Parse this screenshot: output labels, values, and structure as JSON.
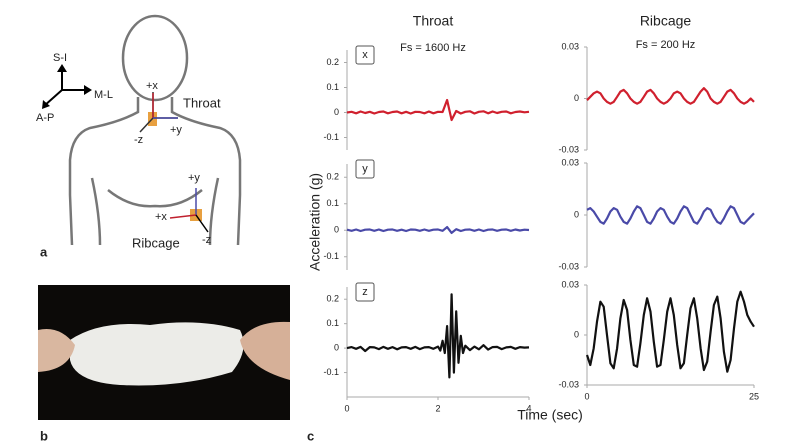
{
  "panels": [
    "a",
    "b",
    "c"
  ],
  "diagram": {
    "axes": [
      "S-I",
      "M-L",
      "A-P"
    ],
    "throat_sensor": {
      "name": "Throat",
      "arrows": [
        "+x",
        "+y",
        "-z"
      ]
    },
    "ribcage_sensor": {
      "name": "Ribcage",
      "arrows": [
        "+y",
        "+x",
        "-z"
      ]
    }
  },
  "y_label": "Acceleration (g)",
  "x_label": "Time (sec)",
  "chart_data": [
    {
      "type": "line",
      "title": "Throat",
      "subtitle": "Fs = 1600 Hz",
      "label": "x",
      "color": "#d0202e",
      "xlim": [
        0,
        4
      ],
      "ylim": [
        -0.15,
        0.25
      ],
      "yticks": [
        -0.1,
        0,
        0.1,
        0.2
      ],
      "x": [
        0,
        0.1,
        0.2,
        0.3,
        0.4,
        0.5,
        0.6,
        0.7,
        0.8,
        0.9,
        1,
        1.1,
        1.2,
        1.3,
        1.4,
        1.5,
        1.6,
        1.7,
        1.8,
        1.9,
        2,
        2.1,
        2.2,
        2.3,
        2.4,
        2.5,
        2.6,
        2.7,
        2.8,
        2.9,
        3,
        3.1,
        3.2,
        3.3,
        3.4,
        3.5,
        3.6,
        3.7,
        3.8,
        3.9,
        4
      ],
      "values": [
        0,
        0.003,
        -0.003,
        0.004,
        -0.002,
        0.003,
        -0.004,
        0.002,
        0.004,
        -0.003,
        0.002,
        0.004,
        -0.003,
        0.003,
        -0.004,
        0.003,
        0.002,
        -0.003,
        0.004,
        -0.003,
        0.003,
        0.002,
        0.05,
        -0.03,
        0.006,
        -0.004,
        0.003,
        0.005,
        -0.004,
        0.003,
        0.005,
        -0.003,
        0.004,
        -0.002,
        0.003,
        0.004,
        -0.003,
        0.002,
        0.004,
        0.001,
        0.003
      ]
    },
    {
      "type": "line",
      "label": "y",
      "color": "#4a4aa8",
      "xlim": [
        0,
        4
      ],
      "ylim": [
        -0.15,
        0.25
      ],
      "yticks": [
        -0.1,
        0,
        0.1,
        0.2
      ],
      "x": [
        0,
        0.1,
        0.2,
        0.3,
        0.4,
        0.5,
        0.6,
        0.7,
        0.8,
        0.9,
        1,
        1.1,
        1.2,
        1.3,
        1.4,
        1.5,
        1.6,
        1.7,
        1.8,
        1.9,
        2,
        2.1,
        2.2,
        2.3,
        2.4,
        2.5,
        2.6,
        2.7,
        2.8,
        2.9,
        3,
        3.1,
        3.2,
        3.3,
        3.4,
        3.5,
        3.6,
        3.7,
        3.8,
        3.9,
        4
      ],
      "values": [
        0.002,
        -0.002,
        0.003,
        -0.003,
        0.002,
        0.003,
        -0.002,
        0.003,
        -0.003,
        0.002,
        0.003,
        -0.002,
        0.002,
        -0.003,
        0.003,
        0.002,
        -0.002,
        0.003,
        -0.002,
        0.002,
        0.003,
        -0.002,
        0.012,
        -0.01,
        0.004,
        -0.003,
        0.002,
        0.003,
        -0.002,
        0.003,
        -0.003,
        0.002,
        0.003,
        -0.002,
        0.002,
        0.003,
        -0.002,
        0.003,
        -0.001,
        0.002,
        0.001
      ]
    },
    {
      "type": "line",
      "label": "z",
      "color": "#111111",
      "xlim": [
        0,
        4
      ],
      "ylim": [
        -0.2,
        0.25
      ],
      "yticks": [
        -0.1,
        0,
        0.1,
        0.2
      ],
      "xticks": [
        0,
        2,
        4
      ],
      "x": [
        0,
        0.1,
        0.2,
        0.3,
        0.4,
        0.5,
        0.6,
        0.7,
        0.8,
        0.9,
        1,
        1.1,
        1.2,
        1.3,
        1.4,
        1.5,
        1.6,
        1.7,
        1.8,
        1.9,
        2,
        2.05,
        2.1,
        2.15,
        2.2,
        2.25,
        2.3,
        2.35,
        2.4,
        2.45,
        2.5,
        2.55,
        2.6,
        2.7,
        2.8,
        2.9,
        3,
        3.1,
        3.2,
        3.3,
        3.4,
        3.5,
        3.6,
        3.7,
        3.8,
        3.9,
        4
      ],
      "values": [
        0,
        0.004,
        -0.003,
        0.005,
        -0.012,
        0.004,
        0.003,
        -0.004,
        0.005,
        -0.003,
        0.004,
        -0.005,
        0.003,
        0.004,
        -0.003,
        0.005,
        -0.004,
        0.003,
        0.004,
        -0.003,
        0.006,
        -0.01,
        0.03,
        -0.02,
        0.09,
        -0.12,
        0.22,
        -0.1,
        0.15,
        -0.06,
        0.05,
        -0.02,
        0.01,
        -0.008,
        0.006,
        -0.005,
        0.012,
        -0.006,
        0.004,
        0.005,
        -0.004,
        0.003,
        0.005,
        -0.003,
        0.004,
        0.002,
        0.003
      ]
    },
    {
      "type": "line",
      "title": "Ribcage",
      "subtitle": "Fs = 200 Hz",
      "color": "#d0202e",
      "xlim": [
        0,
        25
      ],
      "ylim": [
        -0.03,
        0.03
      ],
      "yticks": [
        -0.03,
        0,
        0.03
      ],
      "x": [
        0,
        0.5,
        1,
        1.5,
        2,
        2.5,
        3,
        3.5,
        4,
        4.5,
        5,
        5.5,
        6,
        6.5,
        7,
        7.5,
        8,
        8.5,
        9,
        9.5,
        10,
        10.5,
        11,
        11.5,
        12,
        12.5,
        13,
        13.5,
        14,
        14.5,
        15,
        15.5,
        16,
        16.5,
        17,
        17.5,
        18,
        18.5,
        19,
        19.5,
        20,
        20.5,
        21,
        21.5,
        22,
        22.5,
        23,
        23.5,
        24,
        24.5,
        25
      ],
      "values": [
        -0.001,
        0.001,
        0.003,
        0.004,
        0.003,
        0.0,
        -0.002,
        -0.003,
        -0.002,
        0.001,
        0.004,
        0.005,
        0.003,
        0.0,
        -0.002,
        -0.003,
        -0.002,
        0.001,
        0.004,
        0.005,
        0.003,
        0.0,
        -0.002,
        -0.003,
        -0.002,
        0.0,
        0.003,
        0.004,
        0.003,
        0.0,
        -0.002,
        -0.003,
        -0.002,
        0.001,
        0.004,
        0.006,
        0.004,
        0.0,
        -0.002,
        -0.003,
        -0.002,
        0.001,
        0.004,
        0.005,
        0.003,
        0.0,
        -0.002,
        -0.003,
        -0.002,
        0.0,
        -0.002
      ]
    },
    {
      "type": "line",
      "color": "#4a4aa8",
      "xlim": [
        0,
        25
      ],
      "ylim": [
        -0.03,
        0.03
      ],
      "yticks": [
        -0.03,
        0,
        0.03
      ],
      "x": [
        0,
        0.5,
        1,
        1.5,
        2,
        2.5,
        3,
        3.5,
        4,
        4.5,
        5,
        5.5,
        6,
        6.5,
        7,
        7.5,
        8,
        8.5,
        9,
        9.5,
        10,
        10.5,
        11,
        11.5,
        12,
        12.5,
        13,
        13.5,
        14,
        14.5,
        15,
        15.5,
        16,
        16.5,
        17,
        17.5,
        18,
        18.5,
        19,
        19.5,
        20,
        20.5,
        21,
        21.5,
        22,
        22.5,
        23,
        23.5,
        24,
        24.5,
        25
      ],
      "values": [
        0.003,
        0.004,
        0.002,
        -0.001,
        -0.004,
        -0.005,
        -0.002,
        0.002,
        0.004,
        0.003,
        -0.001,
        -0.004,
        -0.005,
        -0.002,
        0.002,
        0.005,
        0.004,
        0.0,
        -0.004,
        -0.005,
        -0.002,
        0.002,
        0.004,
        0.003,
        -0.001,
        -0.004,
        -0.005,
        -0.002,
        0.002,
        0.005,
        0.004,
        0.0,
        -0.004,
        -0.005,
        -0.002,
        0.002,
        0.004,
        0.003,
        -0.001,
        -0.004,
        -0.005,
        -0.002,
        0.002,
        0.005,
        0.004,
        0.0,
        -0.004,
        -0.005,
        -0.003,
        -0.001,
        0.001
      ]
    },
    {
      "type": "line",
      "color": "#111111",
      "xlim": [
        0,
        25
      ],
      "ylim": [
        -0.03,
        0.03
      ],
      "yticks": [
        -0.03,
        0,
        0.03
      ],
      "xticks": [
        0,
        25
      ],
      "x": [
        0,
        0.5,
        1,
        1.5,
        2,
        2.5,
        3,
        3.5,
        4,
        4.5,
        5,
        5.5,
        6,
        6.5,
        7,
        7.5,
        8,
        8.5,
        9,
        9.5,
        10,
        10.5,
        11,
        11.5,
        12,
        12.5,
        13,
        13.5,
        14,
        14.5,
        15,
        15.5,
        16,
        16.5,
        17,
        17.5,
        18,
        18.5,
        19,
        19.5,
        20,
        20.5,
        21,
        21.5,
        22,
        22.5,
        23,
        23.5,
        24,
        24.5,
        25
      ],
      "values": [
        -0.012,
        -0.018,
        -0.008,
        0.008,
        0.02,
        0.017,
        0.0,
        -0.017,
        -0.02,
        -0.008,
        0.01,
        0.021,
        0.015,
        -0.003,
        -0.018,
        -0.019,
        -0.005,
        0.012,
        0.022,
        0.014,
        -0.004,
        -0.019,
        -0.018,
        -0.003,
        0.014,
        0.022,
        0.012,
        -0.006,
        -0.02,
        -0.017,
        0.0,
        0.016,
        0.022,
        0.01,
        -0.008,
        -0.021,
        -0.016,
        0.002,
        0.018,
        0.023,
        0.01,
        -0.01,
        -0.022,
        -0.015,
        0.004,
        0.02,
        0.026,
        0.02,
        0.012,
        0.008,
        0.005
      ]
    }
  ]
}
